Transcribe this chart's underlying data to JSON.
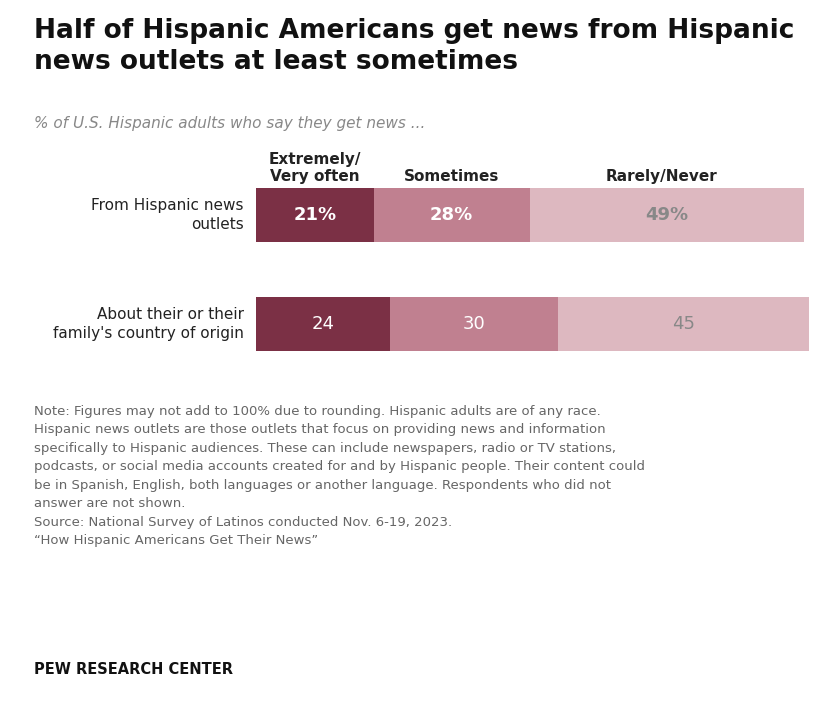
{
  "title": "Half of Hispanic Americans get news from Hispanic\nnews outlets at least sometimes",
  "subtitle": "% of U.S. Hispanic adults who say they get news ...",
  "categories": [
    "From Hispanic news\noutlets",
    "About their or their\nfamily's country of origin"
  ],
  "col_headers": [
    "Extremely/\nVery often",
    "Sometimes",
    "Rarely/Never"
  ],
  "values": [
    [
      21,
      28,
      49
    ],
    [
      24,
      30,
      45
    ]
  ],
  "labels": [
    [
      "21%",
      "28%",
      "49%"
    ],
    [
      "24",
      "30",
      "45"
    ]
  ],
  "colors": [
    "#7b3045",
    "#c08090",
    "#ddb8c0"
  ],
  "bar_height": 0.5,
  "note_text": "Note: Figures may not add to 100% due to rounding. Hispanic adults are of any race.\nHispanic news outlets are those outlets that focus on providing news and information\nspecifically to Hispanic audiences. These can include newspapers, radio or TV stations,\npodcasts, or social media accounts created for and by Hispanic people. Their content could\nbe in Spanish, English, both languages or another language. Respondents who did not\nanswer are not shown.\nSource: National Survey of Latinos conducted Nov. 6-19, 2023.\n“How Hispanic Americans Get Their News”",
  "source_label": "PEW RESEARCH CENTER",
  "background_color": "#ffffff",
  "text_color": "#222222",
  "note_color": "#666666",
  "label_color_white": "#ffffff",
  "label_color_gray": "#888888"
}
